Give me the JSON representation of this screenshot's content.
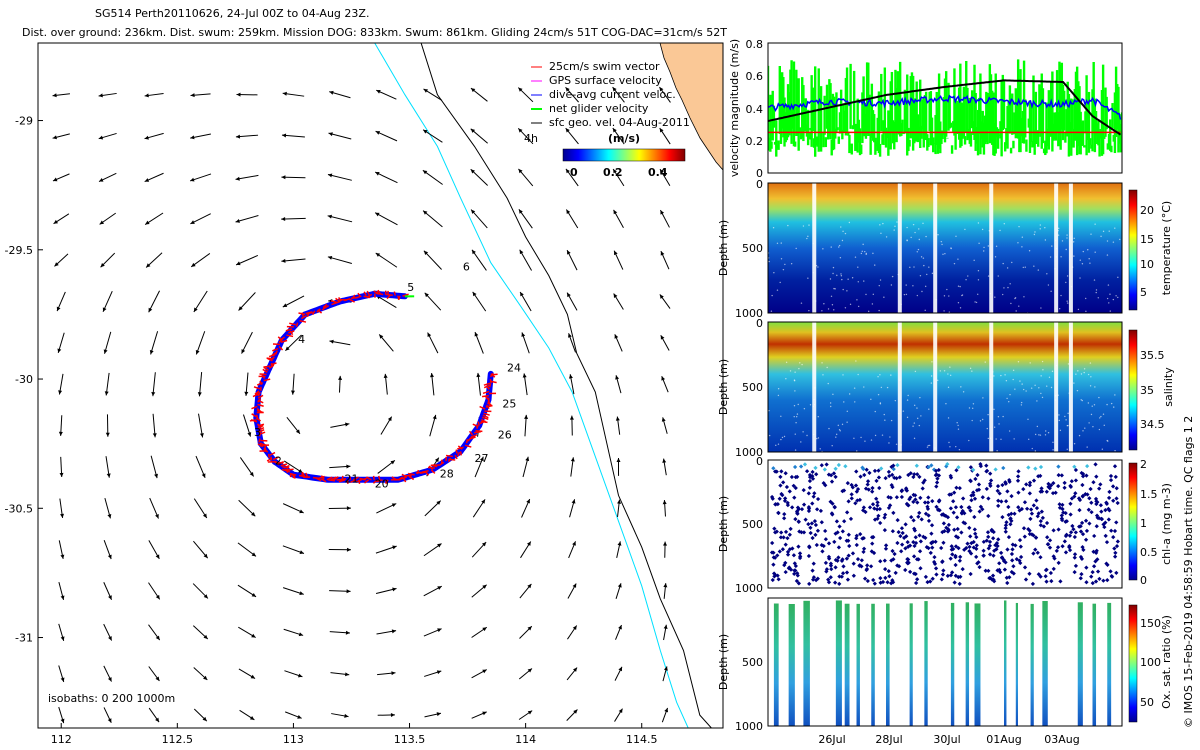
{
  "header": {
    "line1": "SG514 Perth20110626, 24-Jul 00Z to 04-Aug 23Z.",
    "line2": "Dist. over ground: 236km. Dist. swum: 259km. Mission DOG: 833km. Swum: 861km. Gliding 24cm/s 51T COG-DAC=31cm/s 52T"
  },
  "side_note": "© IMOS 15-Feb-2019 04:58:59 Hobart time. QC flags 1 2",
  "colors": {
    "land": "#fac896",
    "coast": "#000000",
    "isobath_200": "#00e0ff",
    "swim": "#ff0000",
    "gps": "#ff00ff",
    "dac": "#0000ff",
    "net": "#00ff00",
    "geo": "#000000"
  },
  "map": {
    "legend": [
      {
        "label": "25cm/s swim vector",
        "color": "#ff0000"
      },
      {
        "label": "GPS surface velocity",
        "color": "#ff00ff"
      },
      {
        "label": "dive-avg current veloc.",
        "color": "#0000ff"
      },
      {
        "label": "net glider velocity",
        "color": "#00ff00"
      },
      {
        "label": "sfc geo. vel. 04-Aug-2011",
        "color": "#000000"
      }
    ],
    "time_label": "4h",
    "isobaths_label": "isobaths: 0 200 1000m",
    "colorbar": {
      "title": "(m/s)",
      "ticks": [
        "0",
        "0.2",
        "0.4"
      ]
    },
    "x_ticks": [
      "112",
      "112.5",
      "113",
      "113.5",
      "114",
      "114.5"
    ],
    "y_ticks": [
      "-29",
      "-29.5",
      "-30",
      "-30.5",
      "-31"
    ],
    "track_labels": [
      "2",
      "3",
      "4",
      "5",
      "6",
      "20",
      "21",
      "24",
      "25",
      "26",
      "27",
      "28"
    ]
  },
  "panels": {
    "velocity": {
      "ylabel": "velocity magnitude (m/s)",
      "ticks": [
        "0",
        "0.2",
        "0.4",
        "0.6",
        "0.8"
      ]
    },
    "temperature": {
      "ylabel": "Depth (m)",
      "cbar_label": "temperature (°C)",
      "cbar_ticks": [
        "5",
        "10",
        "15",
        "20"
      ],
      "depth_ticks": [
        "0",
        "500",
        "1000"
      ]
    },
    "salinity": {
      "ylabel": "Depth (m)",
      "cbar_label": "salinity",
      "cbar_ticks": [
        "34.5",
        "35",
        "35.5"
      ],
      "depth_ticks": [
        "0",
        "500",
        "1000"
      ]
    },
    "chla": {
      "ylabel": "Depth (m)",
      "cbar_label": "chl-a (mg m-3)",
      "cbar_ticks": [
        "0",
        "0.5",
        "1",
        "1.5",
        "2"
      ],
      "depth_ticks": [
        "0",
        "500",
        "1000"
      ]
    },
    "oxygen": {
      "ylabel": "Depth (m)",
      "cbar_label": "Ox. sat. ratio (%)",
      "cbar_ticks": [
        "50",
        "100",
        "150"
      ],
      "depth_ticks": [
        "500",
        "1000"
      ]
    },
    "date_ticks": [
      "26Jul",
      "28Jul",
      "30Jul",
      "01Aug",
      "03Aug"
    ]
  },
  "chart_data": [
    {
      "type": "scatter",
      "title": "",
      "xlabel": "",
      "ylabel": "",
      "xlim": [
        111.9,
        114.85
      ],
      "ylim": [
        -31.35,
        -28.7
      ],
      "x_ticks": [
        112,
        112.5,
        113,
        113.5,
        114,
        114.5
      ],
      "y_ticks": [
        -29,
        -29.5,
        -30,
        -30.5,
        -31
      ],
      "series": [
        {
          "name": "dive-avg current veloc.",
          "points_lonlat": [
            [
              113.48,
              -29.68
            ],
            [
              113.35,
              -29.67
            ],
            [
              113.2,
              -29.7
            ],
            [
              113.05,
              -29.75
            ],
            [
              112.95,
              -29.85
            ],
            [
              112.9,
              -29.95
            ],
            [
              112.85,
              -30.05
            ],
            [
              112.84,
              -30.15
            ],
            [
              112.86,
              -30.25
            ],
            [
              112.92,
              -30.32
            ],
            [
              113.0,
              -30.37
            ],
            [
              113.15,
              -30.39
            ],
            [
              113.3,
              -30.39
            ],
            [
              113.45,
              -30.39
            ],
            [
              113.6,
              -30.35
            ],
            [
              113.72,
              -30.28
            ],
            [
              113.8,
              -30.18
            ],
            [
              113.84,
              -30.08
            ],
            [
              113.85,
              -29.98
            ]
          ]
        },
        {
          "name": "net glider velocity",
          "points_lonlat": [
            [
              113.48,
              -29.68
            ],
            [
              113.52,
              -29.68
            ]
          ]
        }
      ],
      "annotations": [
        "2",
        "3",
        "4",
        "5",
        "6",
        "20",
        "21",
        "24",
        "25",
        "26",
        "27",
        "28"
      ]
    },
    {
      "type": "line",
      "xlabel": "",
      "ylabel": "velocity magnitude (m/s)",
      "ylim": [
        0,
        0.8
      ],
      "x_ticks": [
        "26Jul",
        "28Jul",
        "30Jul",
        "01Aug",
        "03Aug"
      ],
      "x_days": [
        0,
        2,
        4,
        6,
        8,
        10,
        11,
        12
      ],
      "series": [
        {
          "name": "25cm/s swim vector",
          "values_by_day": [
            0.25,
            0.25,
            0.25,
            0.25,
            0.25,
            0.25,
            0.25,
            0.25
          ]
        },
        {
          "name": "sfc geo. vel. 04-Aug-2011",
          "values_by_day": [
            0.32,
            0.4,
            0.48,
            0.53,
            0.57,
            0.56,
            0.35,
            0.23
          ]
        },
        {
          "name": "dive-avg current veloc.",
          "values_by_day": [
            0.4,
            0.44,
            0.43,
            0.46,
            0.44,
            0.42,
            0.45,
            0.34
          ]
        },
        {
          "name": "net glider velocity",
          "values_by_day": [
            0.3,
            0.45,
            0.25,
            0.5,
            0.3,
            0.55,
            0.25,
            0.6
          ]
        }
      ]
    },
    {
      "type": "heatmap",
      "ylabel": "Depth (m)",
      "colorbar": "temperature (°C)",
      "ylim": [
        1000,
        0
      ],
      "color_range": [
        3,
        23
      ]
    },
    {
      "type": "heatmap",
      "ylabel": "Depth (m)",
      "colorbar": "salinity",
      "ylim": [
        1000,
        0
      ],
      "color_range": [
        34.3,
        35.8
      ]
    },
    {
      "type": "scatter",
      "ylabel": "Depth (m)",
      "colorbar": "chl-a (mg m-3)",
      "ylim": [
        1000,
        0
      ],
      "color_range": [
        0,
        2
      ]
    },
    {
      "type": "heatmap",
      "ylabel": "Depth (m)",
      "colorbar": "Ox. sat. ratio (%)",
      "ylim": [
        1000,
        0
      ],
      "color_range": [
        30,
        180
      ]
    }
  ]
}
